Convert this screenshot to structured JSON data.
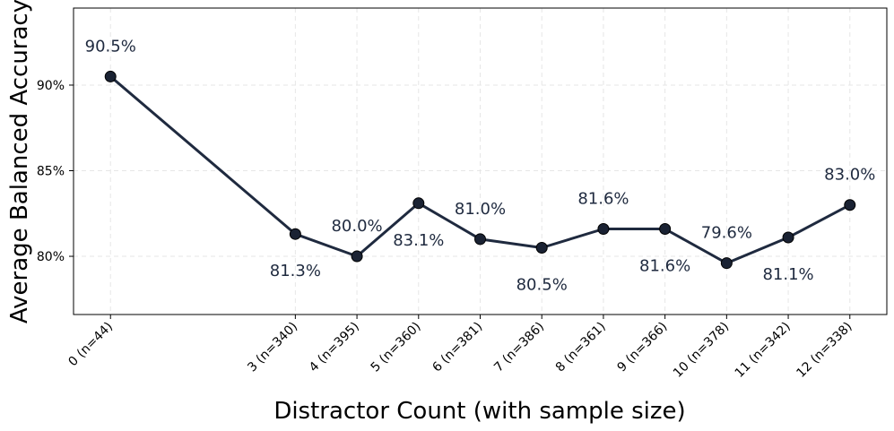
{
  "chart_data": {
    "type": "line",
    "title": "",
    "xlabel": "Distractor Count (with sample size)",
    "ylabel": "Average Balanced Accuracy",
    "x": [
      0,
      3,
      4,
      5,
      6,
      7,
      8,
      9,
      10,
      11,
      12
    ],
    "x_tick_labels": [
      "0 (n=44)",
      "3 (n=340)",
      "4 (n=395)",
      "5 (n=360)",
      "6 (n=381)",
      "7 (n=386)",
      "8 (n=361)",
      "9 (n=366)",
      "10 (n=378)",
      "11 (n=342)",
      "12 (n=338)"
    ],
    "series": [
      {
        "name": "Average Balanced Accuracy",
        "values": [
          90.5,
          81.3,
          80.0,
          83.1,
          81.0,
          80.5,
          81.6,
          81.6,
          79.6,
          81.1,
          83.0
        ],
        "data_labels": [
          "90.5%",
          "81.3%",
          "80.0%",
          "83.1%",
          "81.0%",
          "80.5%",
          "81.6%",
          "81.6%",
          "79.6%",
          "81.1%",
          "83.0%"
        ],
        "label_side": [
          "above",
          "below",
          "above",
          "below",
          "above",
          "below",
          "above",
          "below",
          "above",
          "below",
          "above"
        ]
      }
    ],
    "y_ticks": [
      80,
      85,
      90
    ],
    "y_tick_labels": [
      "80%",
      "85%",
      "90%"
    ],
    "xlim": [
      -0.6,
      12.6
    ],
    "ylim": [
      76.6,
      94.5
    ],
    "grid": true,
    "colors": {
      "line": "#1f2a3f",
      "marker": "#1a2233"
    }
  }
}
